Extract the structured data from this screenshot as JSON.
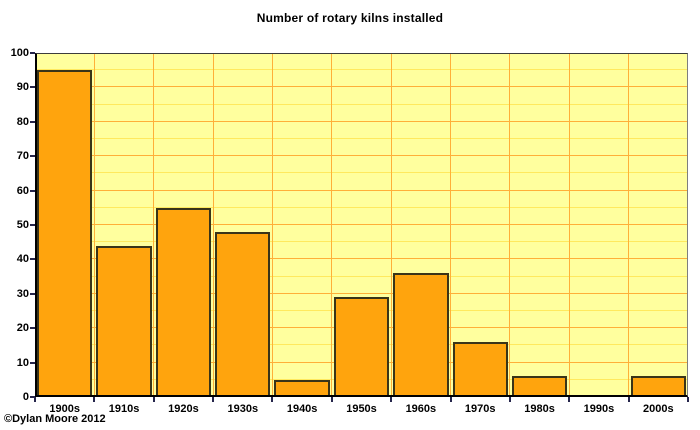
{
  "chart_data": {
    "type": "bar",
    "title": "Number of rotary kilns installed",
    "categories": [
      "1900s",
      "1910s",
      "1920s",
      "1930s",
      "1940s",
      "1950s",
      "1960s",
      "1970s",
      "1980s",
      "1990s",
      "2000s"
    ],
    "values": [
      95,
      44,
      55,
      48,
      5,
      29,
      36,
      16,
      6,
      0,
      6
    ],
    "xlabel": "",
    "ylabel": "",
    "ylim": [
      0,
      100
    ],
    "y_tick_step": 10,
    "y_minor_grid_step": 5,
    "grid": "horizontal major every 10 and minor every 5; vertical separators between decade columns",
    "legend": false,
    "copyright": "©Dylan Moore 2012",
    "colors": {
      "page_bg": "#FFFFFF",
      "plot_bg": "#FFFF9E",
      "bar_fill": "#FFA40D",
      "bar_border": "#3A3418",
      "grid_major": "#FFAF38",
      "grid_minor": "#FFE95E",
      "axis": "#000000",
      "plot_border_right": "#7E7E7E",
      "tick": "#26264C",
      "text": "#000000"
    }
  }
}
